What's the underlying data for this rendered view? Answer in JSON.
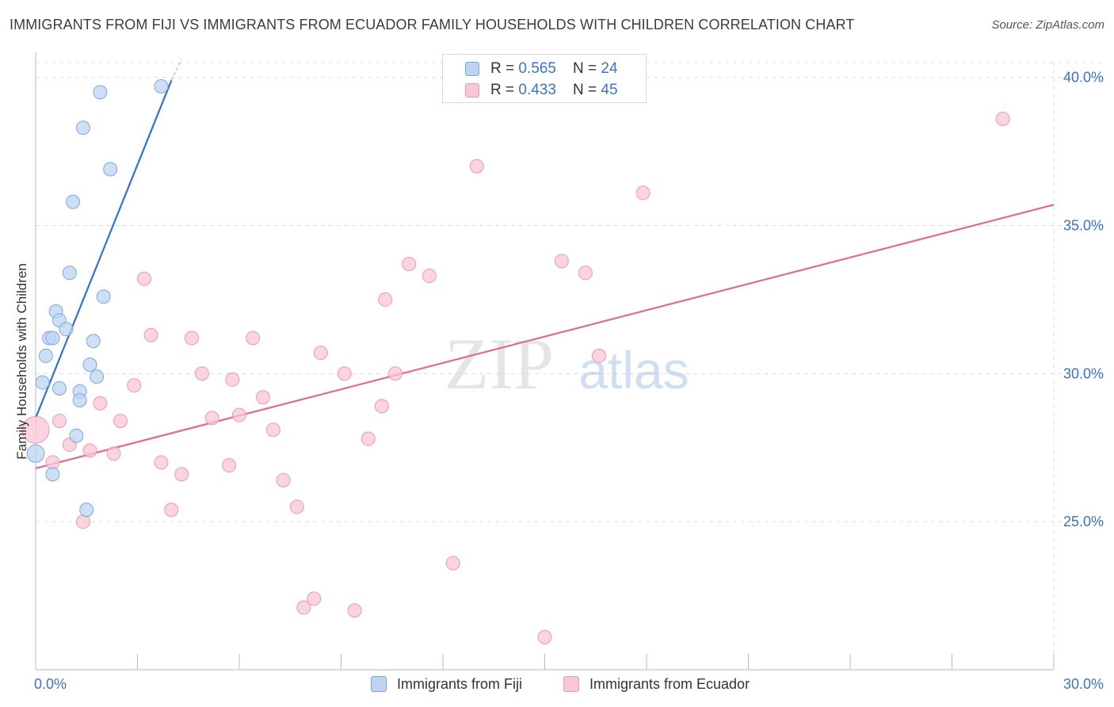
{
  "title": "IMMIGRANTS FROM FIJI VS IMMIGRANTS FROM ECUADOR FAMILY HOUSEHOLDS WITH CHILDREN CORRELATION CHART",
  "source": "Source: ZipAtlas.com",
  "legend": {
    "fiji": {
      "r_label": "R = ",
      "r_value": "0.565",
      "n_label": "N = ",
      "n_value": "24"
    },
    "ecuador": {
      "r_label": "R = ",
      "r_value": "0.433",
      "n_label": "N = ",
      "n_value": "45"
    }
  },
  "colors": {
    "fiji_fill": "#bcd4f2",
    "fiji_stroke": "#7ea7dc",
    "fiji_line": "#2f72cc",
    "ecuador_fill": "#f9c6d5",
    "ecuador_stroke": "#eb9ab3",
    "ecuador_line": "#e0699a",
    "tick_label": "#3a73c8",
    "grid": "#dddddd"
  },
  "watermark": {
    "zip": "ZIP",
    "atlas": "atlas"
  },
  "chart_data": {
    "type": "scatter",
    "title": "IMMIGRANTS FROM FIJI VS IMMIGRANTS FROM ECUADOR FAMILY HOUSEHOLDS WITH CHILDREN CORRELATION CHART",
    "xlabel": "",
    "ylabel": "Family Households with Children",
    "xlim": [
      0,
      30
    ],
    "ylim": [
      20,
      40.5
    ],
    "x_tick_labels": [
      "0.0%",
      "30.0%"
    ],
    "y_ticks": [
      25,
      30,
      35,
      40
    ],
    "y_tick_labels": [
      "25.0%",
      "30.0%",
      "35.0%",
      "40.0%"
    ],
    "series": [
      {
        "name": "Immigrants from Fiji",
        "points": [
          [
            3.7,
            39.7
          ],
          [
            1.9,
            39.5
          ],
          [
            1.4,
            38.3
          ],
          [
            2.2,
            36.9
          ],
          [
            1.1,
            35.8
          ],
          [
            1.0,
            33.4
          ],
          [
            2.0,
            32.6
          ],
          [
            0.6,
            32.1
          ],
          [
            0.7,
            31.8
          ],
          [
            0.9,
            31.5
          ],
          [
            0.4,
            31.2
          ],
          [
            0.5,
            31.2
          ],
          [
            1.7,
            31.1
          ],
          [
            0.3,
            30.6
          ],
          [
            1.6,
            30.3
          ],
          [
            1.8,
            29.9
          ],
          [
            0.2,
            29.7
          ],
          [
            0.7,
            29.5
          ],
          [
            1.3,
            29.4
          ],
          [
            1.3,
            29.1
          ],
          [
            1.2,
            27.9
          ],
          [
            0.0,
            27.3
          ],
          [
            0.5,
            26.6
          ],
          [
            1.5,
            25.4
          ]
        ],
        "trend": {
          "x": [
            0.0,
            4.0
          ],
          "y": [
            28.5,
            39.9
          ],
          "dashed_to": [
            4.3,
            40.6
          ]
        }
      },
      {
        "name": "Immigrants from Ecuador",
        "points": [
          [
            28.5,
            38.6
          ],
          [
            13.0,
            37.0
          ],
          [
            17.9,
            36.1
          ],
          [
            3.2,
            33.2
          ],
          [
            11.0,
            33.7
          ],
          [
            11.6,
            33.3
          ],
          [
            15.5,
            33.8
          ],
          [
            16.2,
            33.4
          ],
          [
            10.3,
            32.5
          ],
          [
            3.4,
            31.3
          ],
          [
            4.6,
            31.2
          ],
          [
            6.4,
            31.2
          ],
          [
            8.4,
            30.7
          ],
          [
            16.6,
            30.6
          ],
          [
            4.9,
            30.0
          ],
          [
            9.1,
            30.0
          ],
          [
            10.6,
            30.0
          ],
          [
            5.8,
            29.8
          ],
          [
            2.9,
            29.6
          ],
          [
            6.7,
            29.2
          ],
          [
            1.9,
            29.0
          ],
          [
            10.2,
            28.9
          ],
          [
            5.2,
            28.5
          ],
          [
            6.0,
            28.6
          ],
          [
            0.7,
            28.4
          ],
          [
            2.5,
            28.4
          ],
          [
            0.0,
            28.1
          ],
          [
            7.0,
            28.1
          ],
          [
            9.8,
            27.8
          ],
          [
            1.0,
            27.6
          ],
          [
            1.6,
            27.4
          ],
          [
            2.3,
            27.3
          ],
          [
            0.5,
            27.0
          ],
          [
            3.7,
            27.0
          ],
          [
            5.7,
            26.9
          ],
          [
            4.3,
            26.6
          ],
          [
            7.3,
            26.4
          ],
          [
            7.7,
            25.5
          ],
          [
            4.0,
            25.4
          ],
          [
            1.4,
            25.0
          ],
          [
            12.3,
            23.6
          ],
          [
            8.2,
            22.4
          ],
          [
            7.9,
            22.1
          ],
          [
            9.4,
            22.0
          ],
          [
            15.0,
            21.1
          ]
        ],
        "trend": {
          "x": [
            0.0,
            30.0
          ],
          "y": [
            26.8,
            35.7
          ]
        }
      }
    ],
    "legend_position": "top-center"
  }
}
